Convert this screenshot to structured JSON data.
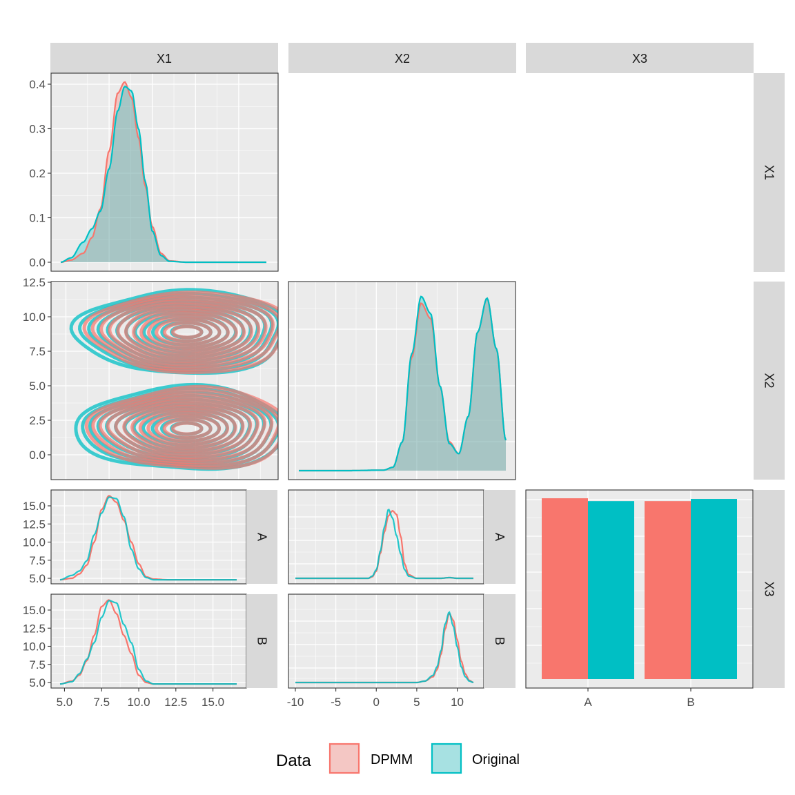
{
  "colors": {
    "dpmm": "#F8766D",
    "original": "#00BFC4",
    "fill_dpmm": "#F4C7C4",
    "fill_original": "#A7E1E2",
    "panel_bg": "#EBEBEB",
    "strip_bg": "#D9D9D9",
    "grid": "#FFFFFF",
    "overlap_fill": "#A6C5C3"
  },
  "strips": {
    "top": [
      "X1",
      "X2",
      "X3"
    ],
    "right": [
      "X1",
      "X2",
      "X3"
    ],
    "facet_x3": [
      "A",
      "B"
    ]
  },
  "legend": {
    "title": "Data",
    "items": [
      {
        "label": "DPMM",
        "color": "#F8766D",
        "fill": "#F4C7C4"
      },
      {
        "label": "Original",
        "color": "#00BFC4",
        "fill": "#A7E1E2"
      }
    ]
  },
  "chart_data": [
    {
      "type": "area",
      "panel": "X1 density (X1, X1)",
      "ylim": [
        0,
        0.4
      ],
      "y_ticks": [
        "0.0",
        "0.1",
        "0.2",
        "0.3",
        "0.4"
      ],
      "series": [
        {
          "name": "DPMM",
          "x": [
            4.7,
            5.3,
            6.0,
            6.5,
            7.0,
            7.5,
            8.0,
            8.4,
            8.8,
            9.2,
            9.6,
            10.0,
            10.5,
            11.0,
            12.0,
            14.0,
            16.6
          ],
          "y": [
            0.0,
            0.005,
            0.02,
            0.055,
            0.12,
            0.25,
            0.38,
            0.405,
            0.37,
            0.28,
            0.17,
            0.08,
            0.02,
            0.003,
            0.0,
            0.0,
            0.0
          ]
        },
        {
          "name": "Original",
          "x": [
            4.7,
            5.3,
            6.0,
            6.5,
            7.0,
            7.5,
            8.0,
            8.4,
            8.8,
            9.2,
            9.6,
            10.0,
            10.5,
            11.0,
            12.0,
            14.0,
            16.6
          ],
          "y": [
            0.0,
            0.01,
            0.045,
            0.075,
            0.115,
            0.21,
            0.34,
            0.395,
            0.385,
            0.3,
            0.18,
            0.07,
            0.015,
            0.002,
            0.0,
            0.0,
            0.0
          ]
        }
      ]
    },
    {
      "type": "line",
      "panel": "X2 vs X1 density contours (X2, X1)",
      "xlim": [
        4.7,
        16.6
      ],
      "ylim": [
        -1.4,
        12.5
      ],
      "y_ticks": [
        "0.0",
        "2.5",
        "5.0",
        "7.5",
        "10.0",
        "12.5"
      ],
      "clusters": [
        {
          "center_x": 12.0,
          "center_y": 8.9
        },
        {
          "center_x": 12.0,
          "center_y": 1.9
        }
      ],
      "series": [
        {
          "name": "DPMM"
        },
        {
          "name": "Original"
        }
      ]
    },
    {
      "type": "area",
      "panel": "X2 density (X2, X2)",
      "xlim": [
        -10.0,
        12.0
      ],
      "series": [
        {
          "name": "DPMM",
          "x": [
            -10.0,
            -5.0,
            -1.0,
            0.0,
            1.0,
            2.0,
            3.0,
            4.0,
            5.0,
            6.0,
            7.0,
            8.0,
            9.0,
            10.0,
            11.0,
            12.0
          ],
          "y": [
            0.0,
            0.0,
            0.003,
            0.02,
            0.17,
            0.67,
            0.99,
            0.9,
            0.5,
            0.17,
            0.1,
            0.32,
            0.82,
            1.02,
            0.72,
            0.18
          ]
        },
        {
          "name": "Original",
          "x": [
            -10.0,
            -5.0,
            -1.0,
            0.0,
            1.0,
            2.0,
            3.0,
            4.0,
            5.0,
            6.0,
            7.0,
            8.0,
            9.0,
            10.0,
            11.0,
            12.0
          ],
          "y": [
            0.0,
            0.0,
            0.003,
            0.02,
            0.17,
            0.69,
            1.03,
            0.93,
            0.5,
            0.16,
            0.1,
            0.32,
            0.82,
            1.02,
            0.72,
            0.18
          ]
        }
      ]
    },
    {
      "type": "line",
      "panel": "X1 density by X3 (facets A, B)",
      "xlim": [
        4.7,
        16.6
      ],
      "ylim": [
        4.6,
        16.6
      ],
      "x_ticks": [
        "5.0",
        "7.5",
        "10.0",
        "12.5",
        "15.0"
      ],
      "y_ticks": [
        "5.0",
        "7.5",
        "10.0",
        "12.5",
        "15.0"
      ],
      "facets": [
        {
          "label": "A",
          "series": [
            {
              "name": "DPMM",
              "x": [
                4.7,
                5.5,
                6.0,
                6.5,
                7.0,
                7.5,
                8.0,
                8.5,
                9.0,
                9.5,
                10.0,
                10.5,
                11.0,
                12.0,
                16.6
              ],
              "y": [
                4.8,
                5.0,
                5.6,
                6.8,
                10.0,
                14.5,
                16.4,
                15.5,
                13.0,
                10.0,
                7.0,
                5.2,
                4.9,
                4.8,
                4.8
              ]
            },
            {
              "name": "Original",
              "x": [
                4.7,
                5.5,
                6.0,
                6.5,
                7.0,
                7.5,
                8.0,
                8.5,
                9.0,
                9.5,
                10.0,
                10.5,
                11.0,
                12.0,
                16.6
              ],
              "y": [
                4.8,
                5.4,
                6.0,
                7.4,
                11.0,
                14.0,
                16.2,
                16.0,
                13.5,
                9.0,
                6.3,
                5.1,
                4.8,
                4.8,
                4.8
              ]
            }
          ]
        },
        {
          "label": "B",
          "series": [
            {
              "name": "DPMM",
              "x": [
                4.7,
                5.5,
                6.0,
                6.5,
                7.0,
                7.5,
                8.0,
                8.5,
                9.0,
                9.5,
                10.0,
                10.5,
                11.0,
                12.0,
                16.6
              ],
              "y": [
                4.8,
                5.2,
                6.0,
                8.0,
                11.5,
                15.5,
                16.4,
                14.5,
                11.5,
                9.0,
                6.0,
                5.0,
                4.8,
                4.8,
                4.8
              ]
            },
            {
              "name": "Original",
              "x": [
                4.7,
                5.5,
                6.0,
                6.5,
                7.0,
                7.5,
                8.0,
                8.5,
                9.0,
                9.5,
                10.0,
                10.5,
                11.0,
                12.0,
                16.6
              ],
              "y": [
                4.8,
                5.1,
                6.2,
                8.2,
                10.5,
                14.0,
                16.3,
                16.0,
                13.0,
                10.5,
                6.8,
                5.2,
                4.8,
                4.8,
                4.8
              ]
            }
          ]
        }
      ]
    },
    {
      "type": "line",
      "panel": "X2 density by X3 (facets A, B)",
      "xlim": [
        -10.0,
        12.0
      ],
      "x_ticks": [
        "-10",
        "-5",
        "0",
        "5",
        "10"
      ],
      "facets": [
        {
          "label": "A",
          "series": [
            {
              "name": "DPMM",
              "x": [
                -10.0,
                -5.0,
                -1.0,
                -0.5,
                0.0,
                0.5,
                1.0,
                1.5,
                2.0,
                2.5,
                3.0,
                3.5,
                4.0,
                5.0,
                8.0,
                9.0,
                10.0,
                12.0
              ],
              "y": [
                0.0,
                0.0,
                0.0,
                0.02,
                0.1,
                0.35,
                0.65,
                0.88,
                0.95,
                0.9,
                0.6,
                0.2,
                0.05,
                0.0,
                0.0,
                0.01,
                0.0,
                0.0
              ]
            },
            {
              "name": "Original",
              "x": [
                -10.0,
                -5.0,
                -1.0,
                -0.5,
                0.0,
                0.5,
                1.0,
                1.5,
                2.0,
                2.5,
                3.0,
                3.5,
                4.0,
                5.0,
                8.0,
                9.0,
                10.0,
                12.0
              ],
              "y": [
                0.0,
                0.0,
                0.0,
                0.03,
                0.12,
                0.38,
                0.72,
                0.97,
                0.85,
                0.6,
                0.35,
                0.12,
                0.03,
                0.0,
                0.0,
                0.01,
                0.0,
                0.0
              ]
            }
          ]
        },
        {
          "label": "B",
          "series": [
            {
              "name": "DPMM",
              "x": [
                -10.0,
                -5.0,
                0.0,
                5.0,
                6.0,
                7.0,
                7.5,
                8.0,
                8.5,
                9.0,
                9.5,
                10.0,
                10.5,
                11.0,
                11.5,
                12.0
              ],
              "y": [
                0.0,
                0.0,
                0.0,
                0.0,
                0.02,
                0.08,
                0.18,
                0.4,
                0.75,
                0.97,
                0.88,
                0.6,
                0.3,
                0.12,
                0.03,
                0.0
              ]
            },
            {
              "name": "Original",
              "x": [
                -10.0,
                -5.0,
                0.0,
                5.0,
                6.0,
                7.0,
                7.5,
                8.0,
                8.5,
                9.0,
                9.5,
                10.0,
                10.5,
                11.0,
                11.5,
                12.0
              ],
              "y": [
                0.0,
                0.0,
                0.0,
                0.0,
                0.02,
                0.1,
                0.22,
                0.45,
                0.82,
                0.99,
                0.8,
                0.5,
                0.22,
                0.08,
                0.02,
                0.0
              ]
            }
          ]
        }
      ]
    },
    {
      "type": "bar",
      "panel": "X3 counts (X3, X3)",
      "categories": [
        "A",
        "B"
      ],
      "series": [
        {
          "name": "DPMM",
          "values": [
            0.505,
            0.497
          ]
        },
        {
          "name": "Original",
          "values": [
            0.497,
            0.503
          ]
        }
      ]
    }
  ]
}
